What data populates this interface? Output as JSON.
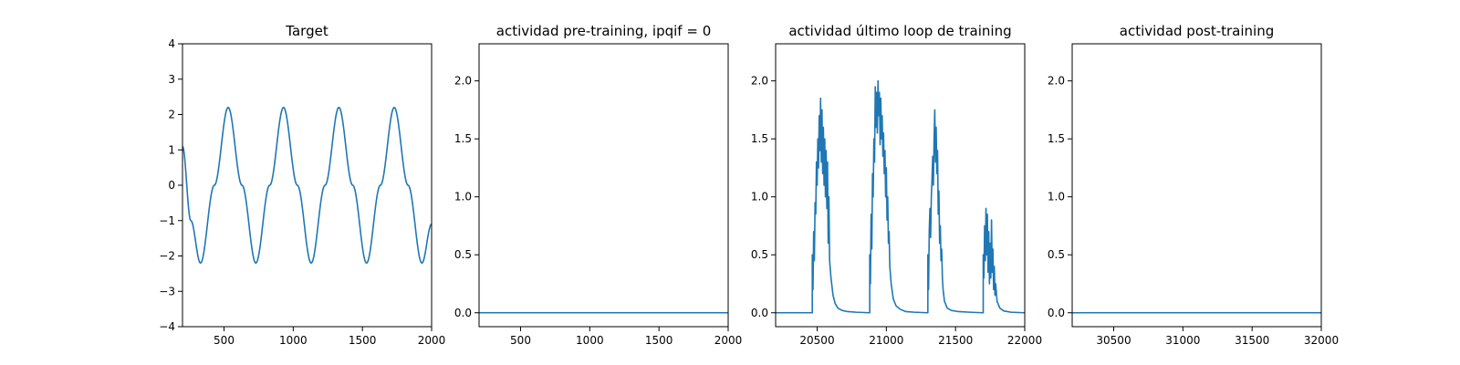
{
  "figure": {
    "background": "#ffffff"
  },
  "chart_data": [
    {
      "type": "line",
      "title": "Target",
      "xlim": [
        200,
        2000
      ],
      "ylim": [
        -4,
        4
      ],
      "xticks": [
        500,
        1000,
        1500,
        2000
      ],
      "xtick_labels": [
        "500",
        "1000",
        "1500",
        "2000"
      ],
      "yticks": [
        -4,
        -3,
        -2,
        -1,
        0,
        1,
        2,
        3,
        4
      ],
      "ytick_labels": [
        "−4",
        "−3",
        "−2",
        "−1",
        "0",
        "1",
        "2",
        "3",
        "4"
      ],
      "grid": false,
      "series": [
        {
          "color": "#1f77b4",
          "x": [
            200,
            260,
            330,
            430,
            530,
            630,
            730,
            830,
            930,
            1030,
            1130,
            1230,
            1330,
            1430,
            1530,
            1630,
            1730,
            1830,
            1930,
            2000
          ],
          "y": [
            1.1,
            -1.0,
            -2.2,
            0.0,
            2.2,
            0.0,
            -2.2,
            0.0,
            2.2,
            0.0,
            -2.2,
            0.0,
            2.2,
            0.0,
            -2.2,
            0.0,
            2.2,
            0.0,
            -2.2,
            -1.1
          ],
          "smooth": true
        }
      ]
    },
    {
      "type": "line",
      "title": "actividad pre-training, ipqif = 0",
      "xlim": [
        200,
        2000
      ],
      "ylim": [
        -0.12,
        2.32
      ],
      "xticks": [
        500,
        1000,
        1500,
        2000
      ],
      "xtick_labels": [
        "500",
        "1000",
        "1500",
        "2000"
      ],
      "yticks": [
        0.0,
        0.5,
        1.0,
        1.5,
        2.0
      ],
      "ytick_labels": [
        "0.0",
        "0.5",
        "1.0",
        "1.5",
        "2.0"
      ],
      "grid": false,
      "series": [
        {
          "color": "#1f77b4",
          "x": [
            200,
            2000
          ],
          "y": [
            0,
            0
          ]
        }
      ]
    },
    {
      "type": "line",
      "title": "actividad último loop de training",
      "xlim": [
        20200,
        22000
      ],
      "ylim": [
        -0.12,
        2.32
      ],
      "xticks": [
        20500,
        21000,
        21500,
        22000
      ],
      "xtick_labels": [
        "20500",
        "21000",
        "21500",
        "22000"
      ],
      "yticks": [
        0.0,
        0.5,
        1.0,
        1.5,
        2.0
      ],
      "ytick_labels": [
        "0.0",
        "0.5",
        "1.0",
        "1.5",
        "2.0"
      ],
      "grid": false,
      "series": [
        {
          "color": "#1f77b4",
          "x": [
            20200,
            20465,
            20465,
            20470,
            20475,
            20480,
            20485,
            20490,
            20495,
            20500,
            20505,
            20510,
            20515,
            20520,
            20525,
            20530,
            20535,
            20540,
            20545,
            20550,
            20555,
            20560,
            20565,
            20570,
            20575,
            20580,
            20585,
            20590,
            20600,
            20615,
            20630,
            20650,
            20680,
            20720,
            20780,
            20880,
            20880,
            20885,
            20890,
            20895,
            20900,
            20905,
            20910,
            20915,
            20920,
            20925,
            20930,
            20935,
            20940,
            20945,
            20950,
            20955,
            20960,
            20965,
            20970,
            20975,
            20980,
            20985,
            20990,
            20995,
            21000,
            21005,
            21010,
            21015,
            21020,
            21025,
            21035,
            21050,
            21070,
            21100,
            21140,
            21200,
            21300,
            21300,
            21305,
            21310,
            21315,
            21320,
            21325,
            21330,
            21335,
            21340,
            21345,
            21350,
            21355,
            21360,
            21365,
            21370,
            21375,
            21380,
            21385,
            21390,
            21395,
            21400,
            21405,
            21410,
            21420,
            21440,
            21470,
            21520,
            21600,
            21700,
            21700,
            21705,
            21710,
            21715,
            21720,
            21725,
            21730,
            21735,
            21740,
            21745,
            21750,
            21755,
            21760,
            21765,
            21770,
            21775,
            21780,
            21785,
            21790,
            21800,
            21820,
            21850,
            21900,
            22000
          ],
          "y": [
            0,
            0,
            0.5,
            0.2,
            0.7,
            0.45,
            0.95,
            0.85,
            1.3,
            1.1,
            1.5,
            1.25,
            1.7,
            1.4,
            1.85,
            1.3,
            1.75,
            1.2,
            1.6,
            1.1,
            1.5,
            1.0,
            1.4,
            0.9,
            1.3,
            0.6,
            1.0,
            0.45,
            0.3,
            0.15,
            0.08,
            0.04,
            0.02,
            0.01,
            0.005,
            0,
            0.5,
            0.25,
            0.85,
            0.55,
            1.2,
            1.0,
            1.5,
            1.3,
            1.95,
            1.6,
            1.9,
            1.55,
            2.0,
            1.7,
            1.9,
            1.45,
            1.85,
            1.5,
            1.7,
            1.35,
            1.55,
            1.2,
            1.4,
            1.0,
            1.25,
            0.8,
            1.0,
            0.6,
            0.7,
            0.4,
            0.25,
            0.12,
            0.06,
            0.03,
            0.01,
            0.005,
            0,
            0.5,
            0.2,
            0.7,
            0.9,
            0.65,
            1.0,
            1.15,
            1.35,
            1.1,
            1.5,
            1.75,
            1.3,
            1.6,
            1.2,
            1.4,
            0.85,
            1.05,
            0.6,
            0.75,
            0.45,
            0.55,
            0.3,
            0.2,
            0.1,
            0.04,
            0.02,
            0.01,
            0.005,
            0,
            0.5,
            0.3,
            0.75,
            0.45,
            0.9,
            0.5,
            0.85,
            0.35,
            0.7,
            0.25,
            0.6,
            0.3,
            0.8,
            0.35,
            0.55,
            0.2,
            0.4,
            0.15,
            0.25,
            0.1,
            0.04,
            0.015,
            0.005,
            0
          ]
        }
      ]
    },
    {
      "type": "line",
      "title": "actividad post-training",
      "xlim": [
        30200,
        32000
      ],
      "ylim": [
        -0.12,
        2.32
      ],
      "xticks": [
        30500,
        31000,
        31500,
        32000
      ],
      "xtick_labels": [
        "30500",
        "31000",
        "31500",
        "32000"
      ],
      "yticks": [
        0.0,
        0.5,
        1.0,
        1.5,
        2.0
      ],
      "ytick_labels": [
        "0.0",
        "0.5",
        "1.0",
        "1.5",
        "2.0"
      ],
      "grid": false,
      "series": [
        {
          "color": "#1f77b4",
          "x": [
            30200,
            32000
          ],
          "y": [
            0,
            0
          ]
        }
      ]
    }
  ]
}
